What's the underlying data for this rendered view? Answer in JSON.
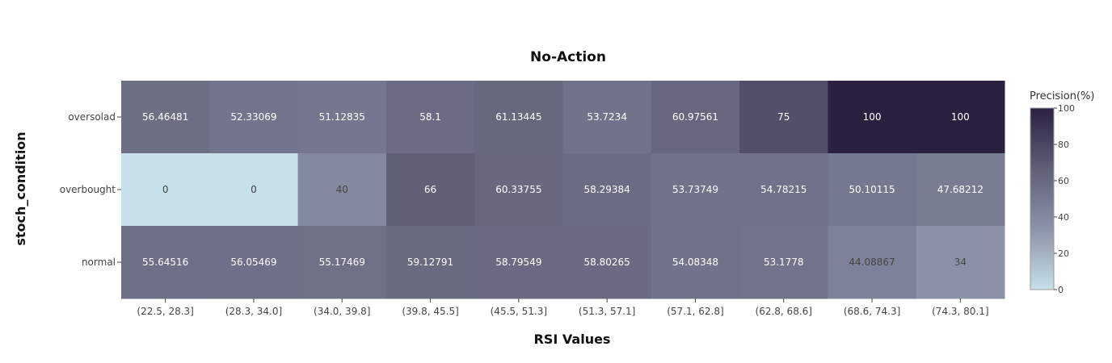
{
  "chart_data": {
    "type": "heatmap",
    "title": "No-Action",
    "xlabel": "RSI Values",
    "ylabel": "stoch_condition",
    "x_categories": [
      "(22.5, 28.3]",
      "(28.3, 34.0]",
      "(34.0, 39.8]",
      "(39.8, 45.5]",
      "(45.5, 51.3]",
      "(51.3, 57.1]",
      "(57.1, 62.8]",
      "(62.8, 68.6]",
      "(68.6, 74.3]",
      "(74.3, 80.1]"
    ],
    "y_categories": [
      "oversolad",
      "overbought",
      "normal"
    ],
    "values": [
      [
        56.46481,
        52.33069,
        51.12835,
        58.1,
        61.13445,
        53.7234,
        60.97561,
        75,
        100,
        100
      ],
      [
        0,
        0,
        40,
        66,
        60.33755,
        58.29384,
        53.73749,
        54.78215,
        50.10115,
        47.68212
      ],
      [
        55.64516,
        56.05469,
        55.17469,
        59.12791,
        58.79549,
        58.80265,
        54.08348,
        53.1778,
        44.08867,
        34
      ]
    ],
    "labels": [
      [
        "56.46481",
        "52.33069",
        "51.12835",
        "58.1",
        "61.13445",
        "53.7234",
        "60.97561",
        "75",
        "100",
        "100"
      ],
      [
        "0",
        "0",
        "40",
        "66",
        "60.33755",
        "58.29384",
        "53.73749",
        "54.78215",
        "50.10115",
        "47.68212"
      ],
      [
        "55.64516",
        "56.05469",
        "55.17469",
        "59.12791",
        "58.79549",
        "58.80265",
        "54.08348",
        "53.1778",
        "44.08867",
        "34"
      ]
    ],
    "zlim": [
      0,
      100
    ],
    "colorbar": {
      "title": "Precision(%)",
      "ticks": [
        "0",
        "20",
        "40",
        "60",
        "80",
        "100"
      ],
      "tick_values": [
        0,
        20,
        40,
        60,
        80,
        100
      ]
    },
    "colorscale": [
      "#c7e0ea",
      "#8c93a8",
      "#5f5f76",
      "#2a2140"
    ]
  }
}
